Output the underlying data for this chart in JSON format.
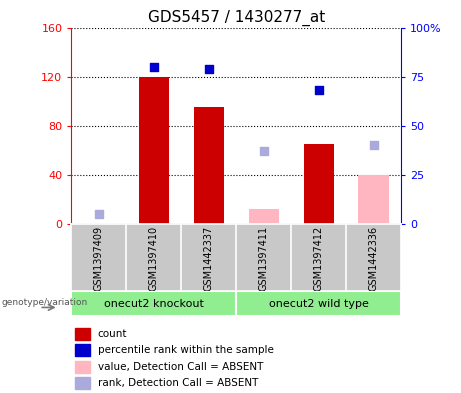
{
  "title": "GDS5457 / 1430277_at",
  "samples": [
    "GSM1397409",
    "GSM1397410",
    "GSM1442337",
    "GSM1397411",
    "GSM1397412",
    "GSM1442336"
  ],
  "groups": [
    {
      "label": "onecut2 knockout",
      "indices": [
        0,
        1,
        2
      ],
      "color": "#90EE90"
    },
    {
      "label": "onecut2 wild type",
      "indices": [
        3,
        4,
        5
      ],
      "color": "#90EE90"
    }
  ],
  "count_values": [
    null,
    120,
    95,
    null,
    65,
    null
  ],
  "percentile_rank": [
    null,
    80,
    79,
    null,
    68,
    null
  ],
  "absent_value": [
    null,
    null,
    null,
    12,
    null,
    40
  ],
  "absent_rank": [
    5,
    null,
    null,
    37,
    null,
    40
  ],
  "ylim_left": [
    0,
    160
  ],
  "ylim_right": [
    0,
    100
  ],
  "yticks_left": [
    0,
    40,
    80,
    120,
    160
  ],
  "yticks_right": [
    0,
    25,
    50,
    75,
    100
  ],
  "ytick_labels_left": [
    "0",
    "40",
    "80",
    "120",
    "160"
  ],
  "ytick_labels_right": [
    "0",
    "25",
    "50",
    "75",
    "100%"
  ],
  "count_color": "#CC0000",
  "percentile_color": "#0000CC",
  "absent_value_color": "#FFB6C1",
  "absent_rank_color": "#AAAADD",
  "bg_color": "#C8C8C8",
  "legend_items": [
    {
      "label": "count",
      "color": "#CC0000"
    },
    {
      "label": "percentile rank within the sample",
      "color": "#0000CC"
    },
    {
      "label": "value, Detection Call = ABSENT",
      "color": "#FFB6C1"
    },
    {
      "label": "rank, Detection Call = ABSENT",
      "color": "#AAAADD"
    }
  ]
}
